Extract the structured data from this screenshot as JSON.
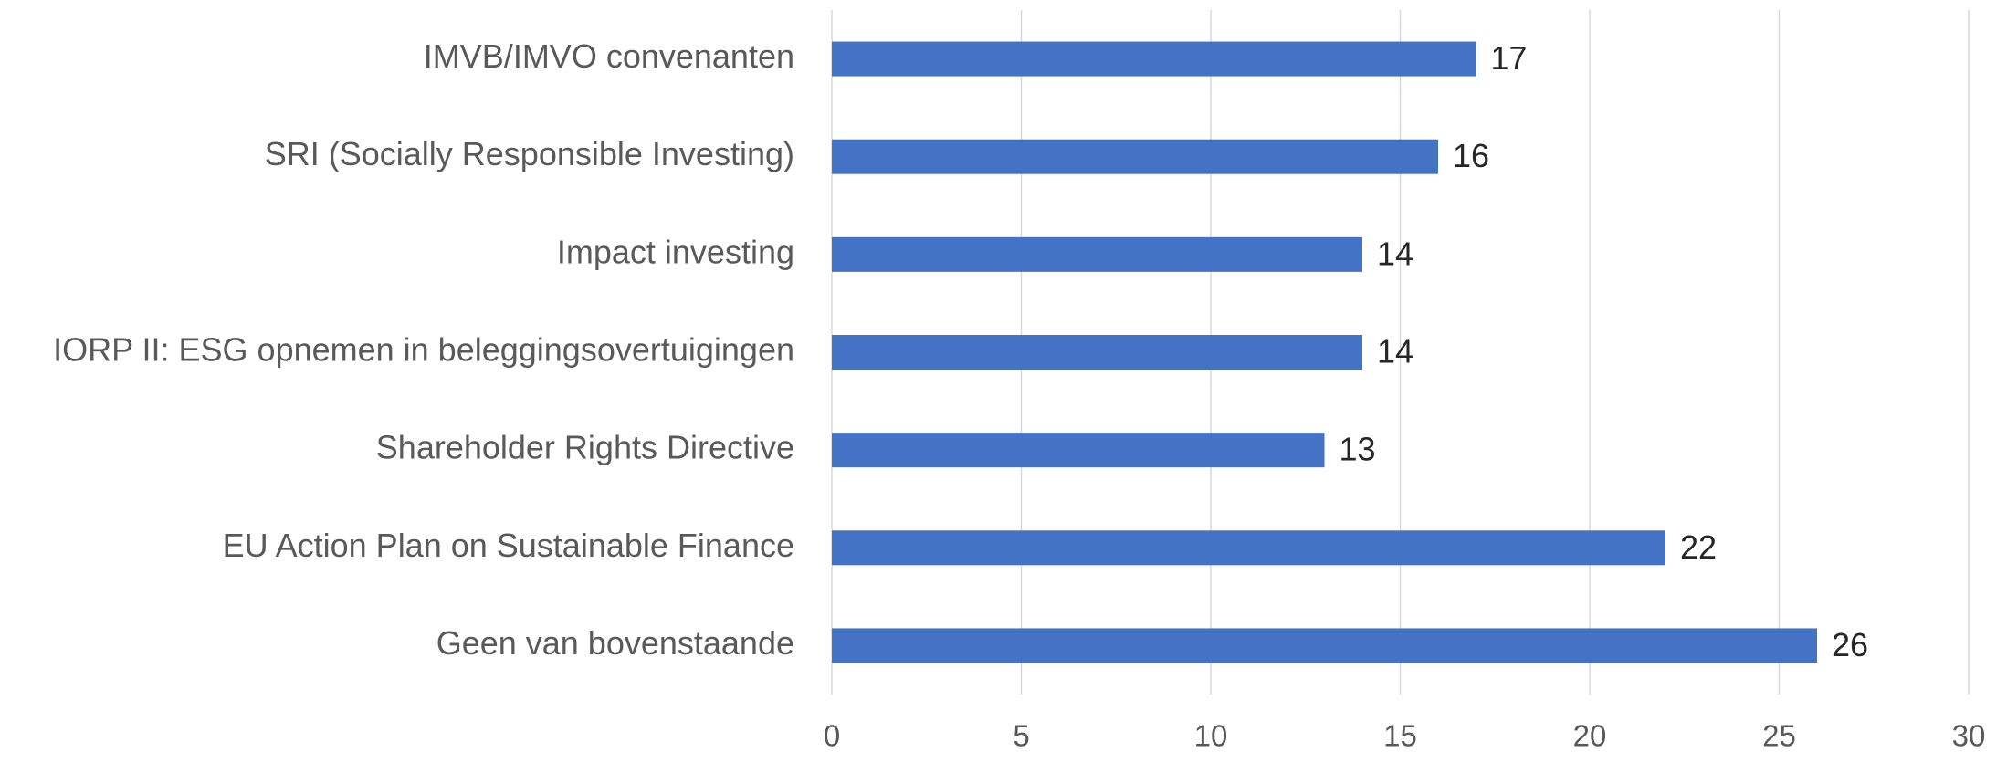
{
  "chart_data": {
    "type": "barh",
    "categories": [
      "IMVB/IMVO convenanten",
      "SRI (Socially Responsible Investing)",
      "Impact investing",
      "IORP II: ESG opnemen in beleggingsovertuigingen",
      "Shareholder Rights Directive",
      "EU Action Plan on Sustainable Finance",
      "Geen van bovenstaande"
    ],
    "values": [
      17,
      16,
      14,
      14,
      13,
      22,
      26
    ],
    "color": "#4472c4",
    "xlim": [
      0,
      30
    ],
    "xticks": [
      0,
      5,
      10,
      15,
      20,
      25,
      30
    ],
    "grid": true
  }
}
